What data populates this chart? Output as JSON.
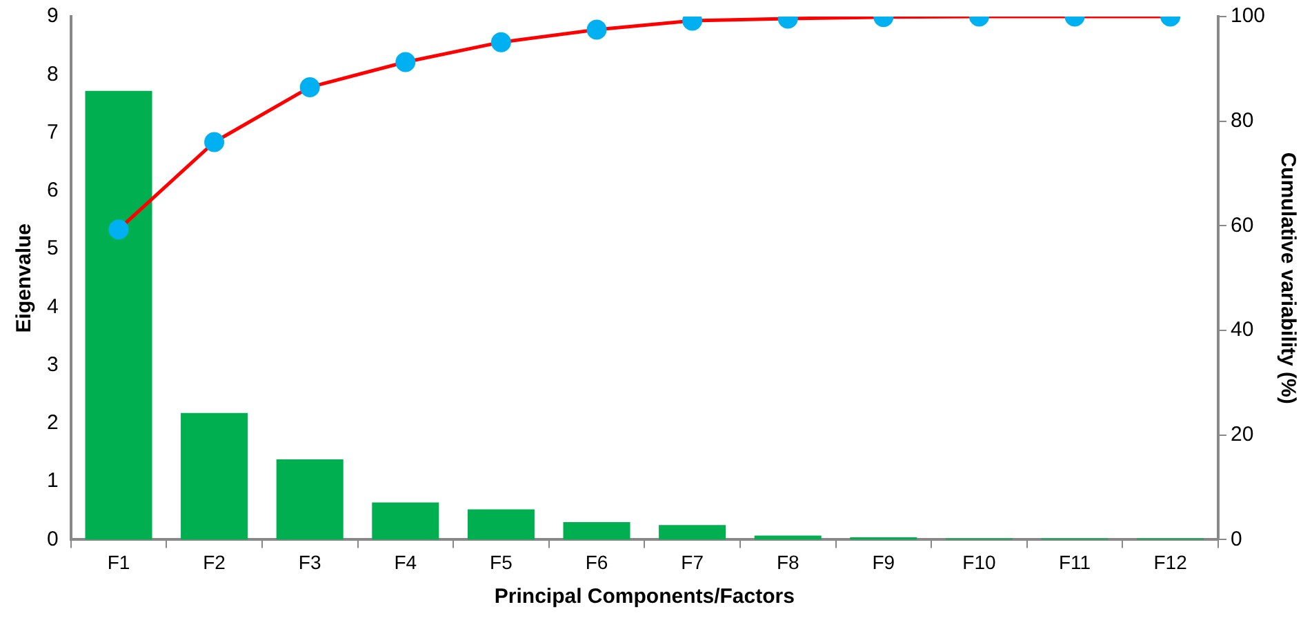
{
  "chart_data": {
    "type": "bar",
    "xlabel": "Principal Components/Factors",
    "ylabel": "Eigenvalue",
    "y2label": "Cumulative variability (%)",
    "categories": [
      "F1",
      "F2",
      "F3",
      "F4",
      "F5",
      "F6",
      "F7",
      "F8",
      "F9",
      "F10",
      "F11",
      "F12"
    ],
    "series": [
      {
        "color": "#00b050",
        "values": [
          7.72,
          2.18,
          1.38,
          0.64,
          0.52,
          0.3,
          0.25,
          0.07,
          0.04,
          0.02,
          0.02,
          0.02
        ]
      },
      {
        "type": "line",
        "axis": "y2",
        "color": "#ff0000",
        "colors": [
          "#00b0f0",
          "#00b0f0",
          "#00b0f0",
          "#00b0f0",
          "#00b0f0",
          "#00b0f0",
          "#00b0f0",
          "#00b0f0",
          "#00b0f0",
          "#00b0f0",
          "#00b0f0",
          "#00b0f0"
        ],
        "values": [
          59.3,
          76.0,
          86.5,
          91.3,
          95.1,
          97.5,
          99.2,
          99.6,
          99.9,
          100,
          100,
          100
        ]
      }
    ],
    "ylim": [
      0,
      9
    ],
    "yticks": [
      0,
      1,
      2,
      3,
      4,
      5,
      6,
      7,
      8,
      9
    ],
    "y2lim": [
      0,
      100
    ],
    "y2ticks": [
      0,
      20,
      40,
      60,
      80,
      100
    ],
    "grid": false,
    "legend": false,
    "marker": "circle",
    "line_style": "solid"
  }
}
